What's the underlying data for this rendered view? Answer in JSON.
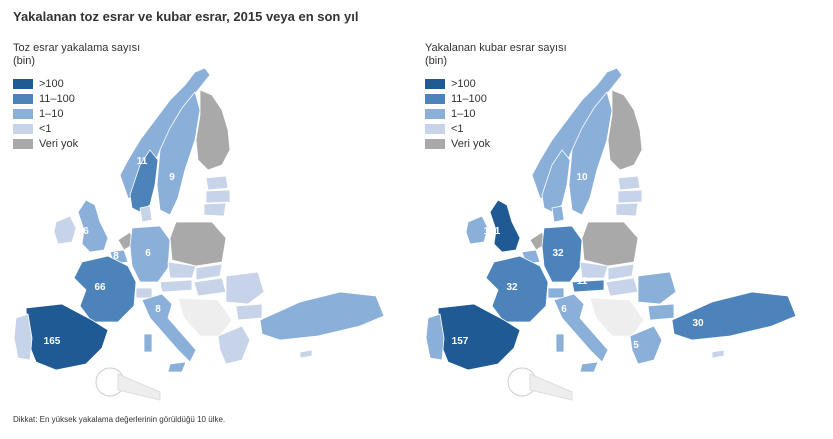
{
  "title": "Yakalanan toz esrar ve kubar esrar, 2015 veya en son yıl",
  "colors": {
    "gt100": "#1f5a94",
    "r11_100": "#4d83bb",
    "r1_10": "#8aafd8",
    "lt1": "#c6d3e8",
    "no_data": "#a9a9a9",
    "non_eu": "#eeeeee",
    "border": "#ffffff"
  },
  "maps": [
    {
      "legend_title_line1": "Toz esrar yakalama sayısı",
      "legend_title_line2": "(bin)",
      "legend": [
        ">100",
        "11–100",
        "1–10",
        "<1",
        "Veri yok"
      ],
      "labels": [
        "11",
        "9",
        "6",
        "6",
        "8",
        "66",
        "8",
        "165"
      ]
    },
    {
      "legend_title_line1": "Yakalanan kubar esrar sayısı",
      "legend_title_line2": "(bin)",
      "legend": [
        ">100",
        "11–100",
        "1–10",
        "<1",
        "Veri yok"
      ],
      "labels": [
        "10",
        "101",
        "32",
        "11",
        "32",
        "6",
        "5",
        "157",
        "30"
      ]
    }
  ],
  "footnote": "Dikkat: En yüksek yakalama değerlerinin görüldüğü 10 ülke."
}
